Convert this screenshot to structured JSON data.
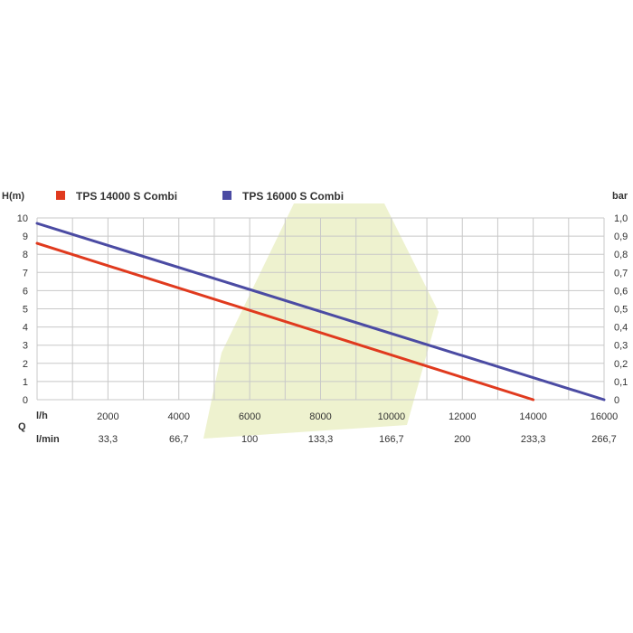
{
  "chart_data": {
    "type": "line",
    "y_left_label": "H(m)",
    "y_right_label": "bar",
    "q_label": "Q",
    "x_unit_label": "l/h",
    "x2_unit_label": "l/min",
    "x_ticks": [
      "2000",
      "4000",
      "6000",
      "8000",
      "10000",
      "12000",
      "14000",
      "16000"
    ],
    "x2_ticks": [
      "33,3",
      "66,7",
      "100",
      "133,3",
      "166,7",
      "200",
      "233,3",
      "266,7"
    ],
    "y_ticks": [
      "0",
      "1",
      "2",
      "3",
      "4",
      "5",
      "6",
      "7",
      "8",
      "9",
      "10"
    ],
    "y2_ticks": [
      "0",
      "0,1",
      "0,2",
      "0,3",
      "0,4",
      "0,5",
      "0,6",
      "0,7",
      "0,8",
      "0,9",
      "1,0"
    ],
    "xlim": [
      0,
      16000
    ],
    "ylim": [
      0,
      10
    ],
    "grid": true,
    "legend_position": "top",
    "series": [
      {
        "name": "TPS 14000 S Combi",
        "color": "#e03a1e",
        "x": [
          0,
          14000
        ],
        "y": [
          8.6,
          0
        ]
      },
      {
        "name": "TPS 16000 S Combi",
        "color": "#4b4ba3",
        "x": [
          0,
          16000
        ],
        "y": [
          9.7,
          0
        ]
      }
    ],
    "watermark_color": "#eef2cf"
  }
}
